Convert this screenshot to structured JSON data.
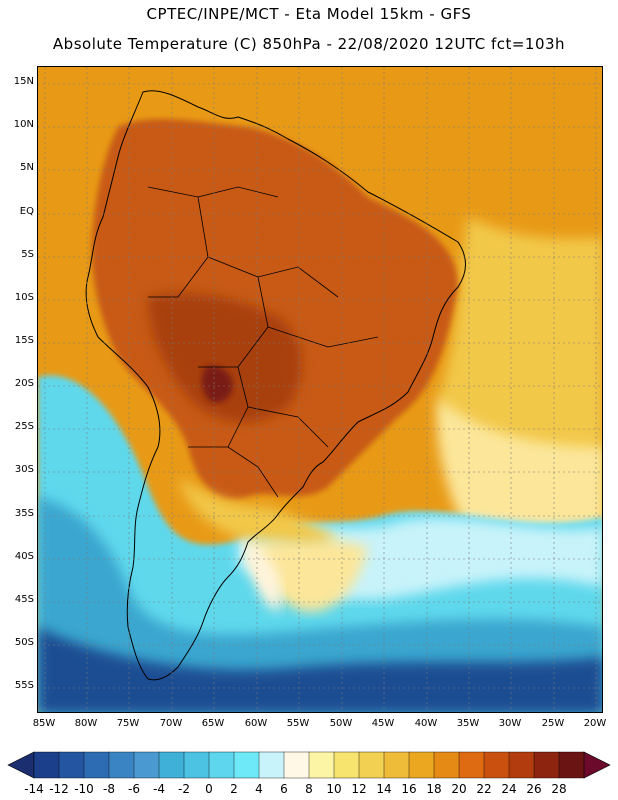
{
  "header": {
    "line1": "CPTEC/INPE/MCT -  Eta Model 15km - GFS",
    "line2": "Absolute Temperature (C) 850hPa - 22/08/2020 12UTC fct=103h"
  },
  "map": {
    "region": "South America",
    "lat_labels": [
      "15N",
      "10N",
      "5N",
      "EQ",
      "5S",
      "10S",
      "15S",
      "20S",
      "25S",
      "30S",
      "35S",
      "40S",
      "45S",
      "50S",
      "55S"
    ],
    "lon_labels": [
      "85W",
      "80W",
      "75W",
      "70W",
      "65W",
      "60W",
      "55W",
      "50W",
      "45W",
      "40W",
      "35W",
      "30W",
      "25W",
      "20W"
    ],
    "colors": {
      "ocean_warm": "#e89a16",
      "land_hot": "#c85a14",
      "land_hotter": "#a8400e",
      "land_hottest": "#7a1a16",
      "mid_yellow": "#f2c84a",
      "light_yellow": "#fbe69a",
      "cream": "#fff4dc",
      "pale_cyan": "#c8f3fa",
      "cyan": "#5ed8ec",
      "blue": "#3aa6cf",
      "deep_blue": "#1d4e93"
    }
  },
  "colorbar": {
    "labels": [
      "-14",
      "-12",
      "-10",
      "-8",
      "-6",
      "-4",
      "-2",
      "0",
      "2",
      "4",
      "6",
      "8",
      "10",
      "12",
      "14",
      "16",
      "18",
      "20",
      "22",
      "24",
      "26",
      "28"
    ],
    "colors": [
      "#1b3f8a",
      "#2355a0",
      "#2d6cb3",
      "#3b84c4",
      "#4a9ad1",
      "#3fb0d8",
      "#4cc3e3",
      "#5ed6ee",
      "#6ee9f7",
      "#c8f3fa",
      "#fff8e6",
      "#fdf5a6",
      "#f6e46e",
      "#f2d052",
      "#efbc3a",
      "#eba71f",
      "#e68a16",
      "#de6a12",
      "#c9500f",
      "#b23c0d",
      "#8d2410",
      "#6b1414"
    ],
    "left_arrow_color": "#1b2f70",
    "right_arrow_color": "#6b0a2a"
  }
}
